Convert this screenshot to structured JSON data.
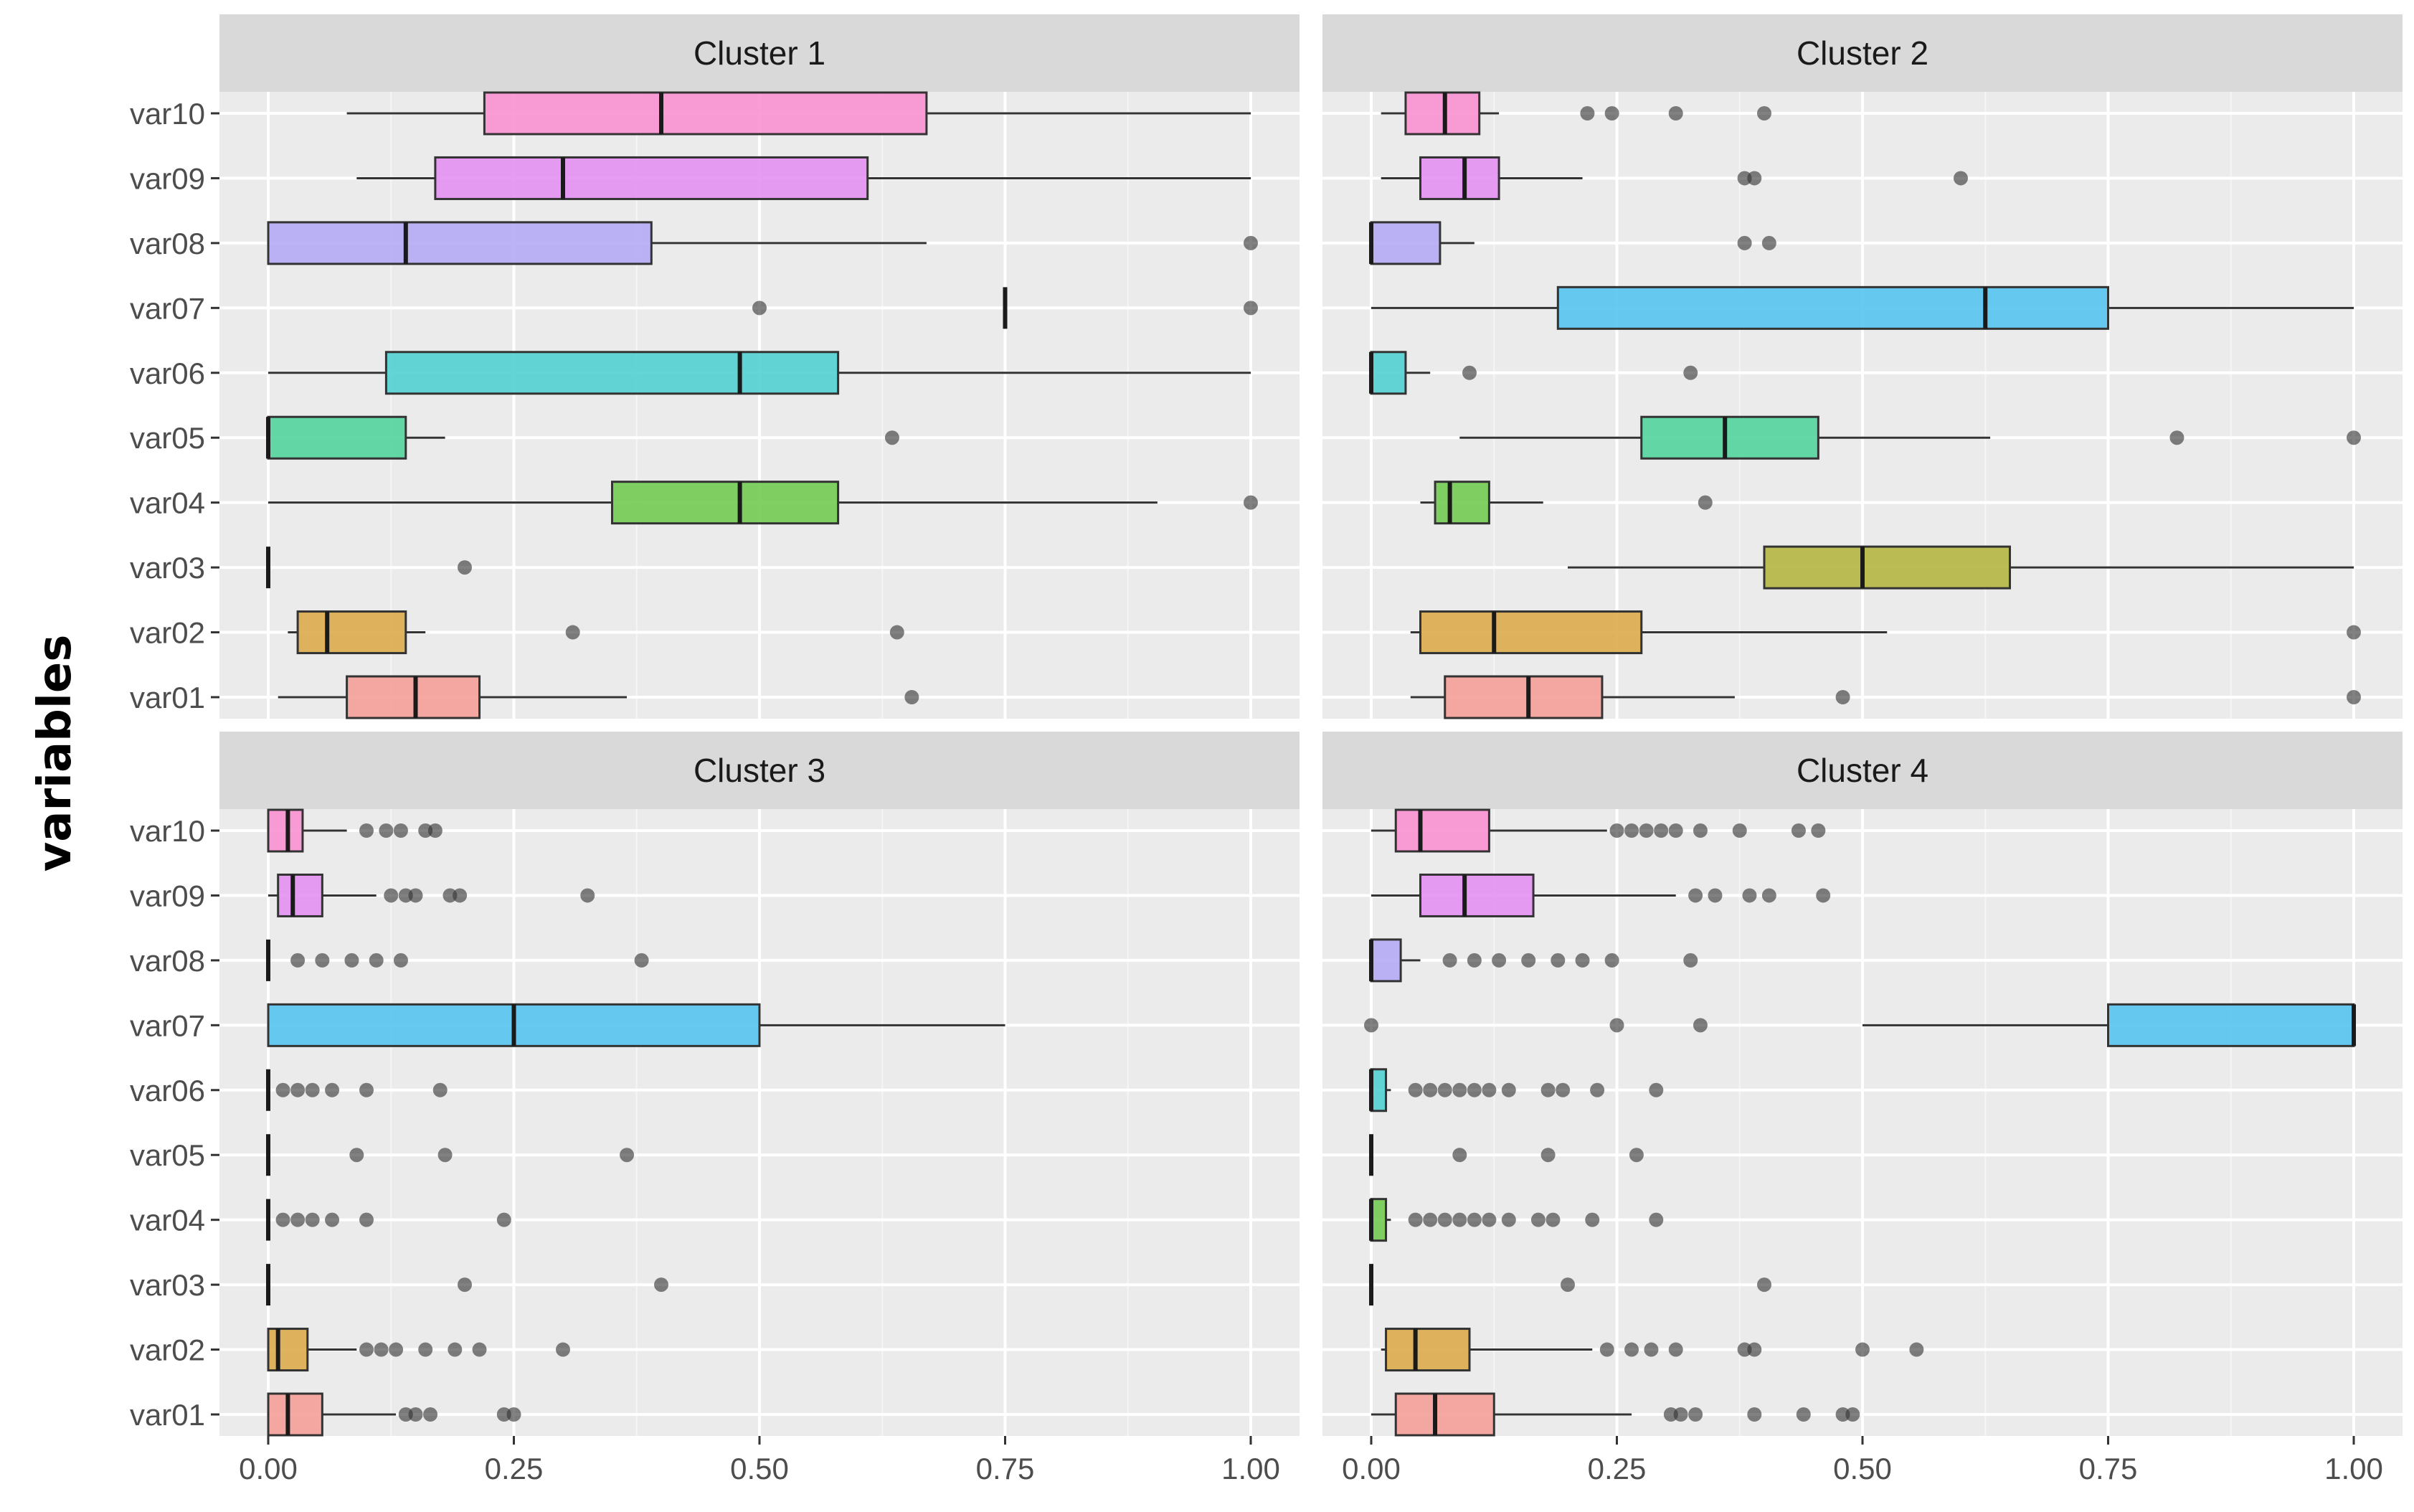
{
  "chart_data": {
    "type": "boxplot",
    "title": "",
    "xlabel": "",
    "ylabel": "variables",
    "xlim": [
      0,
      1
    ],
    "x_ticks": [
      "0.00",
      "0.25",
      "0.50",
      "0.75",
      "1.00"
    ],
    "grid": true,
    "facet_layout": "2x2",
    "categories": [
      "var10",
      "var09",
      "var08",
      "var07",
      "var06",
      "var05",
      "var04",
      "var03",
      "var02",
      "var01"
    ],
    "colors": {
      "var10": "#f98ed0",
      "var09": "#e48ef3",
      "var08": "#b3a8f5",
      "var07": "#52c3ef",
      "var06": "#4dcfd0",
      "var05": "#4fd39a",
      "var04": "#6ec94e",
      "var03": "#b3b43c",
      "var02": "#dcaa48",
      "var01": "#f59c95"
    },
    "panels": [
      {
        "title": "Cluster 1",
        "boxes": [
          {
            "var": "var10",
            "wlo": 0.08,
            "q1": 0.22,
            "med": 0.4,
            "q3": 0.67,
            "whi": 1.0,
            "outliers": []
          },
          {
            "var": "var09",
            "wlo": 0.09,
            "q1": 0.17,
            "med": 0.3,
            "q3": 0.61,
            "whi": 1.0,
            "outliers": []
          },
          {
            "var": "var08",
            "wlo": 0.0,
            "q1": 0.0,
            "med": 0.14,
            "q3": 0.39,
            "whi": 0.67,
            "outliers": [
              1.0
            ]
          },
          {
            "var": "var07",
            "wlo": 0.75,
            "q1": 0.75,
            "med": 0.75,
            "q3": 0.75,
            "whi": 0.75,
            "outliers": [
              0.5,
              1.0
            ]
          },
          {
            "var": "var06",
            "wlo": 0.0,
            "q1": 0.12,
            "med": 0.48,
            "q3": 0.58,
            "whi": 1.0,
            "outliers": []
          },
          {
            "var": "var05",
            "wlo": 0.0,
            "q1": 0.0,
            "med": 0.0,
            "q3": 0.14,
            "whi": 0.18,
            "outliers": [
              0.635
            ]
          },
          {
            "var": "var04",
            "wlo": 0.0,
            "q1": 0.35,
            "med": 0.48,
            "q3": 0.58,
            "whi": 0.905,
            "outliers": [
              1.0
            ]
          },
          {
            "var": "var03",
            "wlo": 0.0,
            "q1": 0.0,
            "med": 0.0,
            "q3": 0.0,
            "whi": 0.0,
            "outliers": [
              0.2
            ]
          },
          {
            "var": "var02",
            "wlo": 0.02,
            "q1": 0.03,
            "med": 0.06,
            "q3": 0.14,
            "whi": 0.16,
            "outliers": [
              0.31,
              0.64
            ]
          },
          {
            "var": "var01",
            "wlo": 0.01,
            "q1": 0.08,
            "med": 0.15,
            "q3": 0.215,
            "whi": 0.365,
            "outliers": [
              0.655
            ]
          }
        ]
      },
      {
        "title": "Cluster 2",
        "boxes": [
          {
            "var": "var10",
            "wlo": 0.01,
            "q1": 0.035,
            "med": 0.075,
            "q3": 0.11,
            "whi": 0.13,
            "outliers": [
              0.22,
              0.245,
              0.31,
              0.4
            ]
          },
          {
            "var": "var09",
            "wlo": 0.01,
            "q1": 0.05,
            "med": 0.095,
            "q3": 0.13,
            "whi": 0.215,
            "outliers": [
              0.38,
              0.39,
              0.6
            ]
          },
          {
            "var": "var08",
            "wlo": 0.0,
            "q1": 0.0,
            "med": 0.0,
            "q3": 0.07,
            "whi": 0.105,
            "outliers": [
              0.38,
              0.405
            ]
          },
          {
            "var": "var07",
            "wlo": 0.0,
            "q1": 0.19,
            "med": 0.625,
            "q3": 0.75,
            "whi": 1.0,
            "outliers": []
          },
          {
            "var": "var06",
            "wlo": 0.0,
            "q1": 0.0,
            "med": 0.0,
            "q3": 0.035,
            "whi": 0.06,
            "outliers": [
              0.1,
              0.325
            ]
          },
          {
            "var": "var05",
            "wlo": 0.09,
            "q1": 0.275,
            "med": 0.36,
            "q3": 0.455,
            "whi": 0.63,
            "outliers": [
              0.82,
              1.0
            ]
          },
          {
            "var": "var04",
            "wlo": 0.05,
            "q1": 0.065,
            "med": 0.08,
            "q3": 0.12,
            "whi": 0.175,
            "outliers": [
              0.34
            ]
          },
          {
            "var": "var03",
            "wlo": 0.2,
            "q1": 0.4,
            "med": 0.5,
            "q3": 0.65,
            "whi": 1.0,
            "outliers": []
          },
          {
            "var": "var02",
            "wlo": 0.04,
            "q1": 0.05,
            "med": 0.125,
            "q3": 0.275,
            "whi": 0.525,
            "outliers": [
              1.0
            ]
          },
          {
            "var": "var01",
            "wlo": 0.04,
            "q1": 0.075,
            "med": 0.16,
            "q3": 0.235,
            "whi": 0.37,
            "outliers": [
              0.48,
              1.0
            ]
          }
        ]
      },
      {
        "title": "Cluster 3",
        "boxes": [
          {
            "var": "var10",
            "wlo": 0.0,
            "q1": 0.0,
            "med": 0.02,
            "q3": 0.035,
            "whi": 0.08,
            "outliers": [
              0.1,
              0.12,
              0.135,
              0.16,
              0.17
            ]
          },
          {
            "var": "var09",
            "wlo": 0.0,
            "q1": 0.01,
            "med": 0.025,
            "q3": 0.055,
            "whi": 0.11,
            "outliers": [
              0.125,
              0.14,
              0.15,
              0.185,
              0.195,
              0.325
            ]
          },
          {
            "var": "var08",
            "wlo": 0.0,
            "q1": 0.0,
            "med": 0.0,
            "q3": 0.0,
            "whi": 0.0,
            "outliers": [
              0.03,
              0.055,
              0.085,
              0.11,
              0.135,
              0.38
            ]
          },
          {
            "var": "var07",
            "wlo": 0.0,
            "q1": 0.0,
            "med": 0.25,
            "q3": 0.5,
            "whi": 0.75,
            "outliers": []
          },
          {
            "var": "var06",
            "wlo": 0.0,
            "q1": 0.0,
            "med": 0.0,
            "q3": 0.0,
            "whi": 0.0,
            "outliers": [
              0.015,
              0.03,
              0.045,
              0.065,
              0.1,
              0.175
            ]
          },
          {
            "var": "var05",
            "wlo": 0.0,
            "q1": 0.0,
            "med": 0.0,
            "q3": 0.0,
            "whi": 0.0,
            "outliers": [
              0.09,
              0.18,
              0.365
            ]
          },
          {
            "var": "var04",
            "wlo": 0.0,
            "q1": 0.0,
            "med": 0.0,
            "q3": 0.0,
            "whi": 0.0,
            "outliers": [
              0.015,
              0.03,
              0.045,
              0.065,
              0.1,
              0.24
            ]
          },
          {
            "var": "var03",
            "wlo": 0.0,
            "q1": 0.0,
            "med": 0.0,
            "q3": 0.0,
            "whi": 0.0,
            "outliers": [
              0.2,
              0.4
            ]
          },
          {
            "var": "var02",
            "wlo": 0.0,
            "q1": 0.0,
            "med": 0.01,
            "q3": 0.04,
            "whi": 0.09,
            "outliers": [
              0.1,
              0.115,
              0.13,
              0.16,
              0.19,
              0.215,
              0.3
            ]
          },
          {
            "var": "var01",
            "wlo": 0.0,
            "q1": 0.0,
            "med": 0.02,
            "q3": 0.055,
            "whi": 0.13,
            "outliers": [
              0.14,
              0.15,
              0.165,
              0.24,
              0.25
            ]
          }
        ]
      },
      {
        "title": "Cluster 4",
        "boxes": [
          {
            "var": "var10",
            "wlo": 0.0,
            "q1": 0.025,
            "med": 0.05,
            "q3": 0.12,
            "whi": 0.24,
            "outliers": [
              0.25,
              0.265,
              0.28,
              0.295,
              0.31,
              0.335,
              0.375,
              0.435,
              0.455
            ]
          },
          {
            "var": "var09",
            "wlo": 0.0,
            "q1": 0.05,
            "med": 0.095,
            "q3": 0.165,
            "whi": 0.31,
            "outliers": [
              0.33,
              0.35,
              0.385,
              0.405,
              0.46
            ]
          },
          {
            "var": "var08",
            "wlo": 0.0,
            "q1": 0.0,
            "med": 0.0,
            "q3": 0.03,
            "whi": 0.05,
            "outliers": [
              0.08,
              0.105,
              0.13,
              0.16,
              0.19,
              0.215,
              0.245,
              0.325
            ]
          },
          {
            "var": "var07",
            "wlo": 0.5,
            "q1": 0.75,
            "med": 1.0,
            "q3": 1.0,
            "whi": 1.0,
            "outliers": [
              0.0,
              0.25,
              0.335
            ]
          },
          {
            "var": "var06",
            "wlo": 0.0,
            "q1": 0.0,
            "med": 0.0,
            "q3": 0.015,
            "whi": 0.02,
            "outliers": [
              0.045,
              0.06,
              0.075,
              0.09,
              0.105,
              0.12,
              0.14,
              0.18,
              0.195,
              0.23,
              0.29
            ]
          },
          {
            "var": "var05",
            "wlo": 0.0,
            "q1": 0.0,
            "med": 0.0,
            "q3": 0.0,
            "whi": 0.0,
            "outliers": [
              0.09,
              0.18,
              0.27
            ]
          },
          {
            "var": "var04",
            "wlo": 0.0,
            "q1": 0.0,
            "med": 0.0,
            "q3": 0.015,
            "whi": 0.02,
            "outliers": [
              0.045,
              0.06,
              0.075,
              0.09,
              0.105,
              0.12,
              0.14,
              0.17,
              0.185,
              0.225,
              0.29
            ]
          },
          {
            "var": "var03",
            "wlo": 0.0,
            "q1": 0.0,
            "med": 0.0,
            "q3": 0.0,
            "whi": 0.0,
            "outliers": [
              0.2,
              0.4
            ]
          },
          {
            "var": "var02",
            "wlo": 0.01,
            "q1": 0.015,
            "med": 0.045,
            "q3": 0.1,
            "whi": 0.225,
            "outliers": [
              0.24,
              0.265,
              0.285,
              0.31,
              0.38,
              0.39,
              0.5,
              0.555
            ]
          },
          {
            "var": "var01",
            "wlo": 0.0,
            "q1": 0.025,
            "med": 0.065,
            "q3": 0.125,
            "whi": 0.265,
            "outliers": [
              0.305,
              0.315,
              0.33,
              0.39,
              0.44,
              0.48,
              0.49
            ]
          }
        ]
      }
    ]
  }
}
